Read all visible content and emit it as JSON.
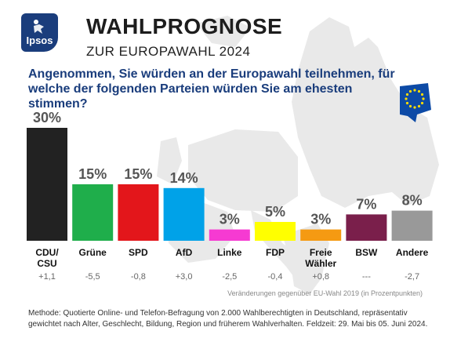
{
  "header": {
    "logo_text": "Ipsos",
    "title": "WAHLPROGNOSE",
    "subtitle": "ZUR EUROPAWAHL 2024",
    "question": "Angenommen, Sie würden an der Europawahl teilnehmen, für welche der folgenden Parteien würden Sie am ehesten stimmen?"
  },
  "colors": {
    "brand": "#1a3d7c",
    "question": "#1a3d7c",
    "map": "#e9e9e9"
  },
  "chart_data": {
    "type": "bar",
    "categories": [
      "CDU/\nCSU",
      "Grüne",
      "SPD",
      "AfD",
      "Linke",
      "FDP",
      "Freie\nWähler",
      "BSW",
      "Andere"
    ],
    "values": [
      30,
      15,
      15,
      14,
      3,
      5,
      3,
      7,
      8
    ],
    "value_labels": [
      "30%",
      "15%",
      "15%",
      "14%",
      "3%",
      "5%",
      "3%",
      "7%",
      "8%"
    ],
    "changes": [
      "+1,1",
      "-5,5",
      "-0,8",
      "+3,0",
      "-2,5",
      "-0,4",
      "+0,8",
      "---",
      "-2,7"
    ],
    "colors": [
      "#222222",
      "#1fae4b",
      "#e3161b",
      "#00a2e8",
      "#f63ad2",
      "#ffff00",
      "#f59a12",
      "#7a1f4b",
      "#999999"
    ],
    "ylim": [
      0,
      30
    ],
    "grid": false,
    "changes_note": "Veränderungen gegenüber EU-Wahl 2019 (in Prozentpunkten)"
  },
  "footer": {
    "method_line1": "Methode: Quotierte Online- und Telefon-Befragung von 2.000 Wahlberechtigten in Deutschland, repräsentativ",
    "method_line2": "gewichtet nach Alter, Geschlecht, Bildung, Region und früherem Wahlverhalten. Feldzeit: 29. Mai bis 05. Juni 2024."
  }
}
